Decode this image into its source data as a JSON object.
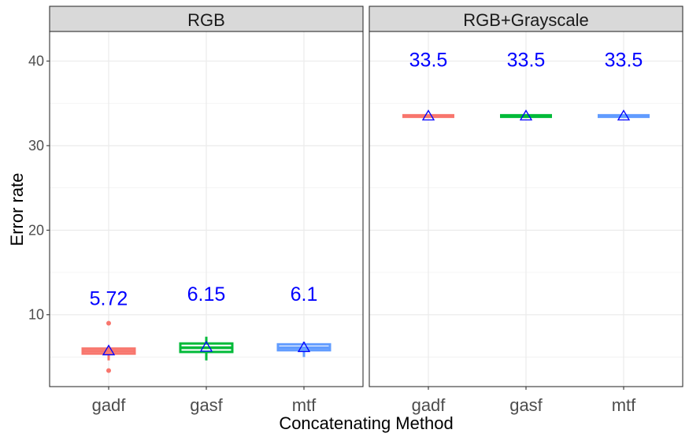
{
  "chart_data": {
    "type": "box",
    "xlabel": "Concatenating Method",
    "ylabel": "Error rate",
    "ylim": [
      1.5,
      43.5
    ],
    "yticks": [
      10,
      20,
      30,
      40
    ],
    "grid": true,
    "legend": "none",
    "categories": [
      "gadf",
      "gasf",
      "mtf"
    ],
    "category_colors": [
      "#F8766D",
      "#00BA38",
      "#619CFF"
    ],
    "mean_marker_color": "#0000ff",
    "label_color": "#0000ff",
    "panels": [
      {
        "name": "RGB",
        "boxes": [
          {
            "category": "gadf",
            "min": 4.6,
            "q1": 5.4,
            "median": 5.7,
            "q3": 6.0,
            "max": 6.3,
            "mean": 5.72,
            "outliers": [
              9.0,
              3.4
            ],
            "label": "5.72",
            "label_y": 12.0
          },
          {
            "category": "gasf",
            "min": 4.6,
            "q1": 5.6,
            "median": 6.1,
            "q3": 6.6,
            "max": 7.4,
            "mean": 6.15,
            "outliers": [],
            "label": "6.15",
            "label_y": 12.5
          },
          {
            "category": "mtf",
            "min": 5.0,
            "q1": 5.8,
            "median": 6.1,
            "q3": 6.5,
            "max": 6.8,
            "mean": 6.1,
            "outliers": [],
            "label": "6.1",
            "label_y": 12.5
          }
        ]
      },
      {
        "name": "RGB+Grayscale",
        "boxes": [
          {
            "category": "gadf",
            "min": 33.5,
            "q1": 33.5,
            "median": 33.5,
            "q3": 33.5,
            "max": 33.5,
            "mean": 33.5,
            "outliers": [],
            "label": "33.5",
            "label_y": 40.2
          },
          {
            "category": "gasf",
            "min": 33.5,
            "q1": 33.5,
            "median": 33.5,
            "q3": 33.5,
            "max": 33.5,
            "mean": 33.5,
            "outliers": [],
            "label": "33.5",
            "label_y": 40.2
          },
          {
            "category": "mtf",
            "min": 33.5,
            "q1": 33.5,
            "median": 33.5,
            "q3": 33.5,
            "max": 33.5,
            "mean": 33.5,
            "outliers": [],
            "label": "33.5",
            "label_y": 40.2
          }
        ]
      }
    ]
  }
}
